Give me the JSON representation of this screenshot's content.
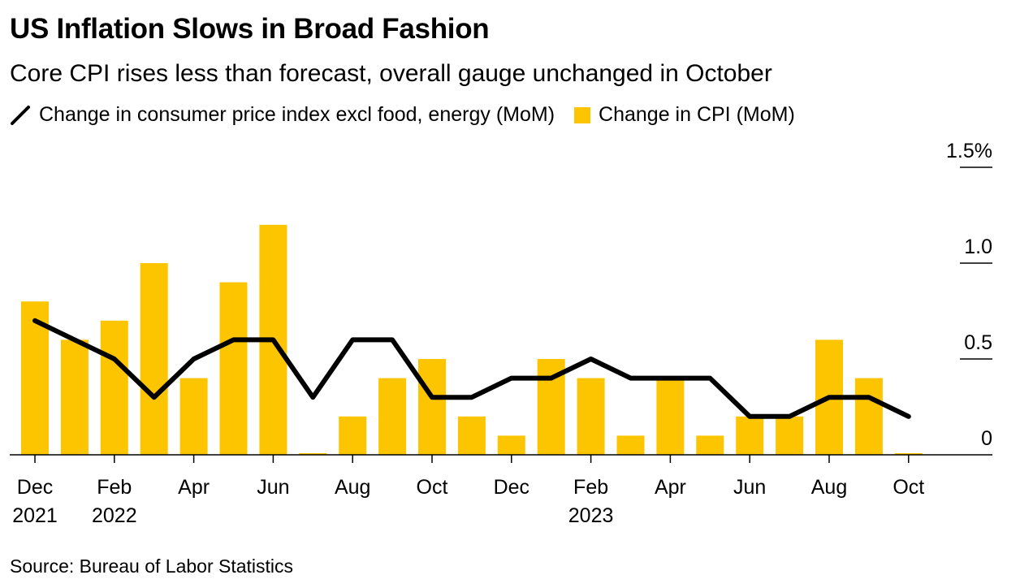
{
  "header": {
    "title": "US Inflation Slows in Broad Fashion",
    "subtitle": "Core CPI rises less than forecast, overall gauge unchanged in October"
  },
  "footer": {
    "source": "Source: Bureau of Labor Statistics"
  },
  "colors": {
    "bar": "#FDC500",
    "line": "#000000",
    "axis": "#000000"
  },
  "chart_data": {
    "type": "bar",
    "categories": [
      "Dec 2021",
      "Jan 2022",
      "Feb 2022",
      "Mar 2022",
      "Apr 2022",
      "May 2022",
      "Jun 2022",
      "Jul 2022",
      "Aug 2022",
      "Sep 2022",
      "Oct 2022",
      "Nov 2022",
      "Dec 2022",
      "Jan 2023",
      "Feb 2023",
      "Mar 2023",
      "Apr 2023",
      "May 2023",
      "Jun 2023",
      "Jul 2023",
      "Aug 2023",
      "Sep 2023",
      "Oct 2023"
    ],
    "series": [
      {
        "name": "Change in CPI (MoM)",
        "type": "bar",
        "values": [
          0.8,
          0.6,
          0.7,
          1.0,
          0.4,
          0.9,
          1.2,
          0.0,
          0.2,
          0.4,
          0.5,
          0.2,
          0.1,
          0.5,
          0.4,
          0.1,
          0.4,
          0.1,
          0.2,
          0.2,
          0.6,
          0.4,
          0.0
        ]
      },
      {
        "name": "Change in consumer price index excl food, energy (MoM)",
        "type": "line",
        "values": [
          0.7,
          0.6,
          0.5,
          0.3,
          0.5,
          0.6,
          0.6,
          0.3,
          0.6,
          0.6,
          0.3,
          0.3,
          0.4,
          0.4,
          0.5,
          0.4,
          0.4,
          0.4,
          0.2,
          0.2,
          0.3,
          0.3,
          0.2
        ]
      }
    ],
    "x_tick_labels": [
      {
        "index": 0,
        "line1": "Dec",
        "line2": "2021"
      },
      {
        "index": 2,
        "line1": "Feb",
        "line2": "2022"
      },
      {
        "index": 4,
        "line1": "Apr",
        "line2": ""
      },
      {
        "index": 6,
        "line1": "Jun",
        "line2": ""
      },
      {
        "index": 8,
        "line1": "Aug",
        "line2": ""
      },
      {
        "index": 10,
        "line1": "Oct",
        "line2": ""
      },
      {
        "index": 12,
        "line1": "Dec",
        "line2": ""
      },
      {
        "index": 14,
        "line1": "Feb",
        "line2": "2023"
      },
      {
        "index": 16,
        "line1": "Apr",
        "line2": ""
      },
      {
        "index": 18,
        "line1": "Jun",
        "line2": ""
      },
      {
        "index": 20,
        "line1": "Aug",
        "line2": ""
      },
      {
        "index": 22,
        "line1": "Oct",
        "line2": ""
      }
    ],
    "y_ticks": [
      {
        "value": 0,
        "label": "0"
      },
      {
        "value": 0.5,
        "label": "0.5"
      },
      {
        "value": 1.0,
        "label": "1.0"
      },
      {
        "value": 1.5,
        "label": "1.5%"
      }
    ],
    "ylim": [
      0,
      1.5
    ],
    "y_axis_position": "right",
    "grid": false,
    "legend_position": "top-left"
  }
}
